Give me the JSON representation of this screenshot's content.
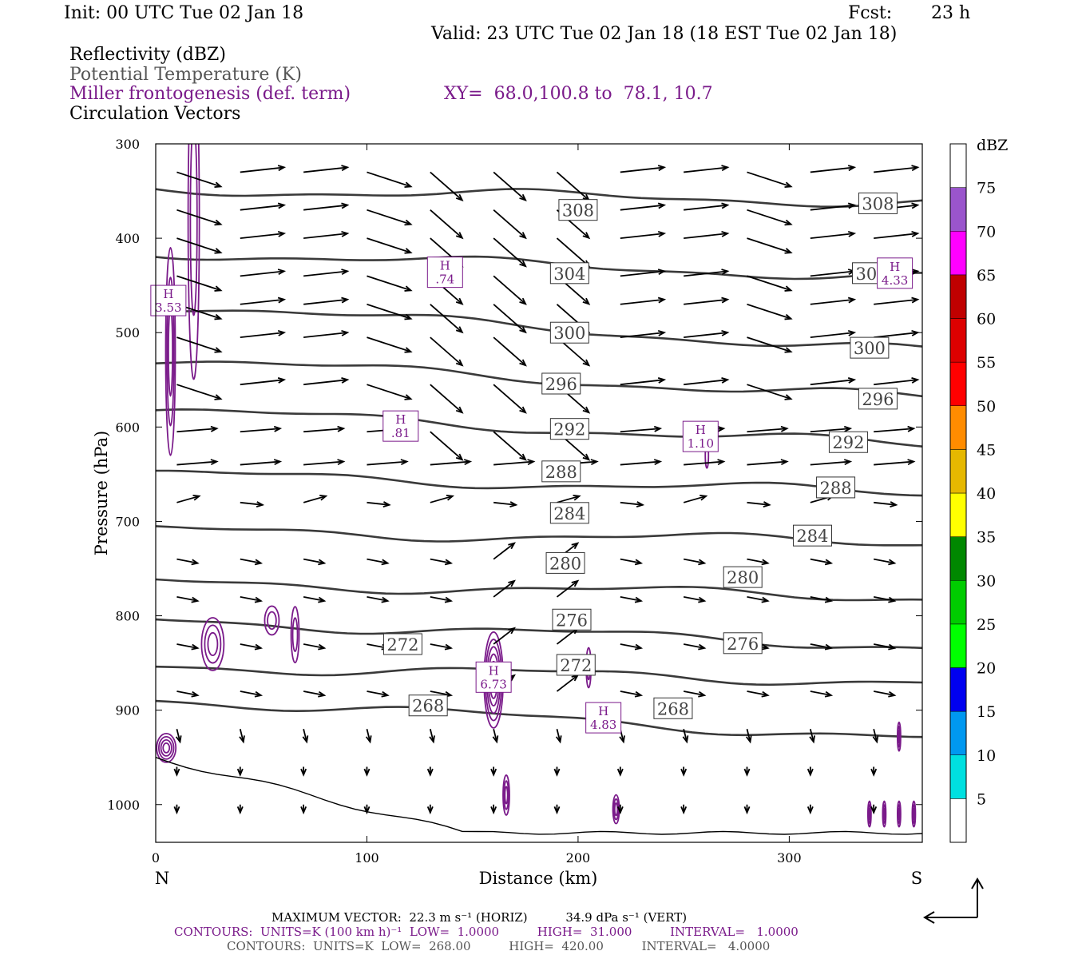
{
  "header": {
    "init": "Init: 00 UTC Tue 02 Jan 18",
    "fcst_label": "Fcst:",
    "fcst_value": "23 h",
    "valid": "Valid: 23 UTC Tue 02 Jan 18 (18 EST Tue 02 Jan 18)",
    "field1": "Reflectivity (dBZ)",
    "field2": "Potential Temperature (K)",
    "field3": "Miller frontogenesis (def. term)",
    "xy": "XY=  68.0,100.8 to  78.1, 10.7",
    "field4": "Circulation Vectors"
  },
  "colors": {
    "theta": "#3a3a3a",
    "fronto": "#7a1a8a",
    "vector": "#000000"
  },
  "chart_data": {
    "type": "line",
    "xlabel": "Distance (km)",
    "ylabel": "Pressure (hPa)",
    "xlim": [
      0,
      363
    ],
    "ylim": [
      1040,
      300
    ],
    "x_ticks": [
      0,
      100,
      200,
      300
    ],
    "y_ticks": [
      300,
      400,
      500,
      600,
      700,
      800,
      900,
      1000
    ],
    "x_left_label": "N",
    "x_right_label": "S",
    "theta_levels": [
      {
        "value": 308,
        "label": "308",
        "left": 348,
        "right": 362
      },
      {
        "value": 304,
        "label": "304",
        "left": 415,
        "right": 442
      },
      {
        "value": 300,
        "label": "300",
        "left": 470,
        "right": 520
      },
      {
        "value": 296,
        "label": "296",
        "left": 528,
        "right": 570
      },
      {
        "value": 292,
        "label": "292",
        "left": 582,
        "right": 620
      },
      {
        "value": 288,
        "label": "288",
        "left": 650,
        "right": 670
      },
      {
        "value": 284,
        "label": "284",
        "left": 710,
        "right": 722
      },
      {
        "value": 280,
        "label": "280",
        "left": 765,
        "right": 780
      },
      {
        "value": 276,
        "label": "276",
        "left": 805,
        "right": 832
      },
      {
        "value": 272,
        "label": "272",
        "left": 853,
        "right": 870
      },
      {
        "value": 268,
        "label": "268",
        "left": 888,
        "right": 930
      }
    ],
    "theta_label_positions": [
      {
        "label": "308",
        "x": 200,
        "p": 370
      },
      {
        "label": "308",
        "x": 342,
        "p": 363
      },
      {
        "label": "304",
        "x": 196,
        "p": 437
      },
      {
        "label": "304",
        "x": 339,
        "p": 437
      },
      {
        "label": "300",
        "x": 196,
        "p": 500
      },
      {
        "label": "300",
        "x": 338,
        "p": 516
      },
      {
        "label": "296",
        "x": 192,
        "p": 554
      },
      {
        "label": "296",
        "x": 342,
        "p": 570
      },
      {
        "label": "292",
        "x": 196,
        "p": 602
      },
      {
        "label": "292",
        "x": 328,
        "p": 616
      },
      {
        "label": "288",
        "x": 192,
        "p": 647
      },
      {
        "label": "288",
        "x": 322,
        "p": 664
      },
      {
        "label": "284",
        "x": 196,
        "p": 691
      },
      {
        "label": "284",
        "x": 311,
        "p": 715
      },
      {
        "label": "280",
        "x": 194,
        "p": 744
      },
      {
        "label": "280",
        "x": 278,
        "p": 759
      },
      {
        "label": "276",
        "x": 197,
        "p": 804
      },
      {
        "label": "276",
        "x": 278,
        "p": 829
      },
      {
        "label": "272",
        "x": 117,
        "p": 830
      },
      {
        "label": "272",
        "x": 199,
        "p": 852
      },
      {
        "label": "268",
        "x": 129,
        "p": 895
      },
      {
        "label": "268",
        "x": 245,
        "p": 898
      }
    ],
    "fronto_maxima": [
      {
        "label": "H",
        "value": "3.53",
        "x": 6,
        "p": 466
      },
      {
        "label": "H",
        "value": ".74",
        "x": 137,
        "p": 436
      },
      {
        "label": "H",
        "value": ".81",
        "x": 116,
        "p": 599
      },
      {
        "label": "H",
        "value": "1.10",
        "x": 258,
        "p": 610
      },
      {
        "label": "H",
        "value": "6.73",
        "x": 160,
        "p": 865
      },
      {
        "label": "H",
        "value": "4.83",
        "x": 212,
        "p": 908
      },
      {
        "label": "H",
        "value": "4.33",
        "x": 350,
        "p": 437
      }
    ],
    "colorbar": {
      "title": "dBZ",
      "levels": [
        "5",
        "10",
        "15",
        "20",
        "25",
        "30",
        "35",
        "40",
        "45",
        "50",
        "55",
        "60",
        "65",
        "70",
        "75"
      ],
      "colors": [
        "#00e0e0",
        "#0098f0",
        "#0000f0",
        "#00ff00",
        "#00cc00",
        "#008800",
        "#ffff00",
        "#e6b800",
        "#ff8c00",
        "#ff0000",
        "#dd0000",
        "#c00000",
        "#ff00ff",
        "#9a55cc",
        "#ffffff"
      ]
    }
  },
  "footer": {
    "max_vector": "MAXIMUM VECTOR:  22.3 m s⁻¹ (HORIZ)          34.9 dPa s⁻¹ (VERT)",
    "contours_fronto": "CONTOURS:  UNITS=K (100 km h)⁻¹  LOW=  1.0000          HIGH=  31.000          INTERVAL=   1.0000",
    "contours_theta": "CONTOURS:  UNITS=K  LOW=  268.00          HIGH=  420.00          INTERVAL=   4.0000"
  }
}
